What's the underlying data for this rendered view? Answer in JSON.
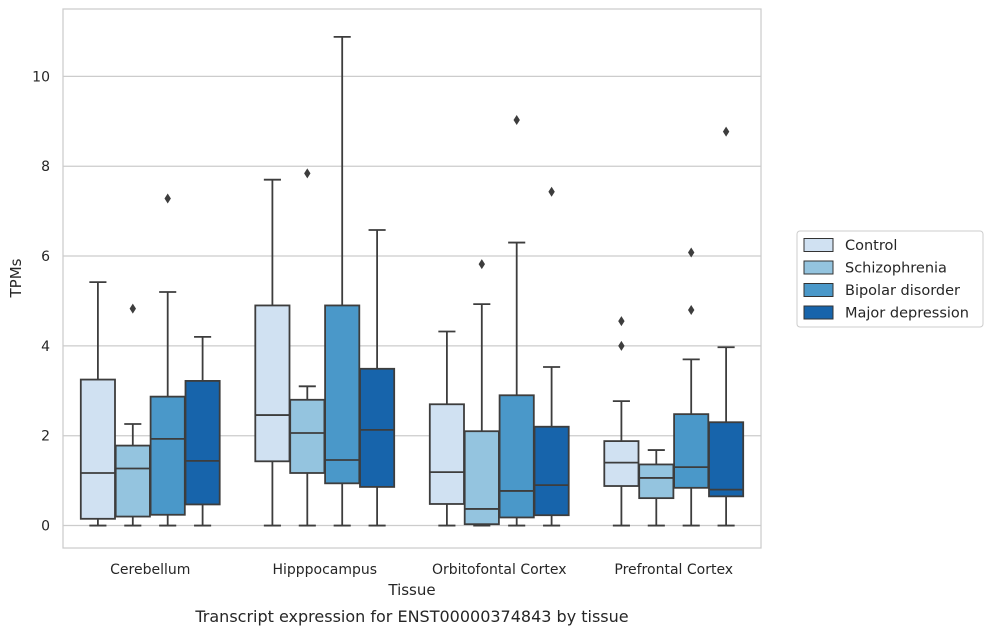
{
  "chart_data": {
    "type": "box",
    "title": "",
    "caption": "Transcript expression for ENST00000374843 by tissue",
    "xlabel": "Tissue",
    "ylabel": "TPMs",
    "ylim": [
      -0.5,
      11.5
    ],
    "yticks": [
      0,
      2,
      4,
      6,
      8,
      10
    ],
    "grid": "y",
    "legend_position": "right",
    "categories": [
      "Cerebellum",
      "Hipppocampus",
      "Orbitofontal Cortex",
      "Prefrontal Cortex"
    ],
    "series": [
      {
        "name": "Control",
        "color": "#d0e1f2",
        "boxes": [
          {
            "whislo": 0,
            "q1": 0.15,
            "med": 1.17,
            "q3": 3.25,
            "whishi": 5.42,
            "fliers": []
          },
          {
            "whislo": 0,
            "q1": 1.43,
            "med": 2.46,
            "q3": 4.9,
            "whishi": 7.7,
            "fliers": []
          },
          {
            "whislo": 0,
            "q1": 0.48,
            "med": 1.19,
            "q3": 2.7,
            "whishi": 4.32,
            "fliers": []
          },
          {
            "whislo": 0,
            "q1": 0.88,
            "med": 1.4,
            "q3": 1.88,
            "whishi": 2.77,
            "fliers": [
              4.0,
              4.55
            ]
          }
        ]
      },
      {
        "name": "Schizophrenia",
        "color": "#94c4df",
        "boxes": [
          {
            "whislo": 0,
            "q1": 0.2,
            "med": 1.27,
            "q3": 1.78,
            "whishi": 2.26,
            "fliers": [
              4.83
            ]
          },
          {
            "whislo": 0,
            "q1": 1.17,
            "med": 2.06,
            "q3": 2.8,
            "whishi": 3.1,
            "fliers": [
              7.84
            ]
          },
          {
            "whislo": 0,
            "q1": 0.03,
            "med": 0.37,
            "q3": 2.1,
            "whishi": 4.93,
            "fliers": [
              5.82
            ]
          },
          {
            "whislo": 0,
            "q1": 0.61,
            "med": 1.06,
            "q3": 1.36,
            "whishi": 1.68,
            "fliers": []
          }
        ]
      },
      {
        "name": "Bipolar disorder",
        "color": "#4a98c9",
        "boxes": [
          {
            "whislo": 0,
            "q1": 0.24,
            "med": 1.93,
            "q3": 2.87,
            "whishi": 5.2,
            "fliers": [
              7.28
            ]
          },
          {
            "whislo": 0,
            "q1": 0.94,
            "med": 1.46,
            "q3": 4.9,
            "whishi": 10.88,
            "fliers": []
          },
          {
            "whislo": 0,
            "q1": 0.18,
            "med": 0.77,
            "q3": 2.9,
            "whishi": 6.3,
            "fliers": [
              9.03
            ]
          },
          {
            "whislo": 0,
            "q1": 0.84,
            "med": 1.3,
            "q3": 2.48,
            "whishi": 3.7,
            "fliers": [
              4.8,
              6.08
            ]
          }
        ]
      },
      {
        "name": "Major depression",
        "color": "#1764ab",
        "boxes": [
          {
            "whislo": 0,
            "q1": 0.47,
            "med": 1.44,
            "q3": 3.22,
            "whishi": 4.2,
            "fliers": []
          },
          {
            "whislo": 0,
            "q1": 0.86,
            "med": 2.13,
            "q3": 3.49,
            "whishi": 6.58,
            "fliers": []
          },
          {
            "whislo": 0,
            "q1": 0.23,
            "med": 0.9,
            "q3": 2.2,
            "whishi": 3.53,
            "fliers": [
              7.43
            ]
          },
          {
            "whislo": 0,
            "q1": 0.65,
            "med": 0.8,
            "q3": 2.3,
            "whishi": 3.97,
            "fliers": [
              8.77
            ]
          }
        ]
      }
    ]
  }
}
